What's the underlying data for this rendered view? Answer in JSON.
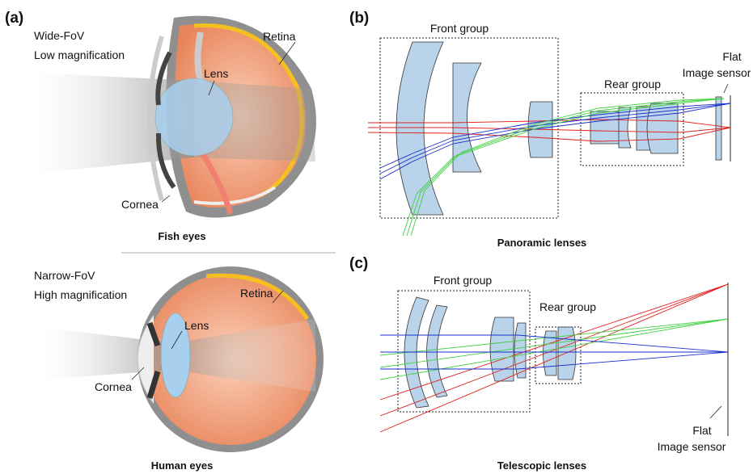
{
  "panel_a": {
    "label": "(a)",
    "fish": {
      "fov_lines": [
        "Wide-FoV",
        "Low magnification"
      ],
      "retina": "Retina",
      "lens": "Lens",
      "cornea": "Cornea",
      "caption": "Fish eyes"
    },
    "human": {
      "fov_lines": [
        "Narrow-FoV",
        "High magnification"
      ],
      "retina": "Retina",
      "lens": "Lens",
      "cornea": "Cornea",
      "caption": "Human eyes"
    }
  },
  "panel_b": {
    "label": "(b)",
    "front_group": "Front group",
    "rear_group": "Rear group",
    "sensor_lines": [
      "Flat",
      "Image sensor"
    ],
    "caption": "Panoramic lenses"
  },
  "panel_c": {
    "label": "(c)",
    "front_group": "Front group",
    "rear_group": "Rear group",
    "sensor_lines": [
      "Flat",
      "Image sensor"
    ],
    "caption": "Telescopic lenses"
  }
}
